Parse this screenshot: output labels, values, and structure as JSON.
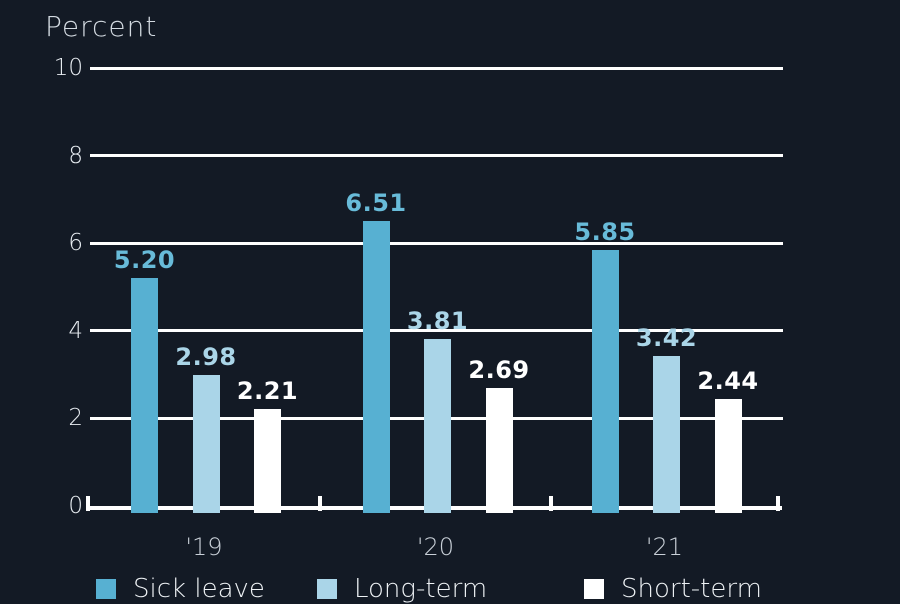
{
  "page": {
    "background": "#131a25"
  },
  "chart_data": {
    "type": "bar",
    "title": "Percent",
    "categories": [
      "'19",
      "'20",
      "'21"
    ],
    "series": [
      {
        "name": "Sick leave",
        "values": [
          5.2,
          6.51,
          5.85
        ],
        "labels": [
          "5.20",
          "6.51",
          "5.85"
        ],
        "color": "#57b0d2",
        "label_color": "#68bbd9"
      },
      {
        "name": "Long-term",
        "values": [
          2.98,
          3.81,
          3.42
        ],
        "labels": [
          "2.98",
          "3.81",
          "3.42"
        ],
        "color": "#aad5e8",
        "label_color": "#aad5e8"
      },
      {
        "name": "Short-term",
        "values": [
          2.21,
          2.69,
          2.44
        ],
        "labels": [
          "2.21",
          "2.69",
          "2.44"
        ],
        "color": "#ffffff",
        "label_color": "#ffffff"
      }
    ],
    "ylim": [
      0,
      10
    ],
    "yticks": [
      0,
      2,
      4,
      6,
      8,
      10
    ],
    "grid": true,
    "gridline_color": "#ffffff",
    "legend_position": "bottom",
    "axis_text_color": "#e8edf2",
    "title_color": "#d3dae1"
  }
}
